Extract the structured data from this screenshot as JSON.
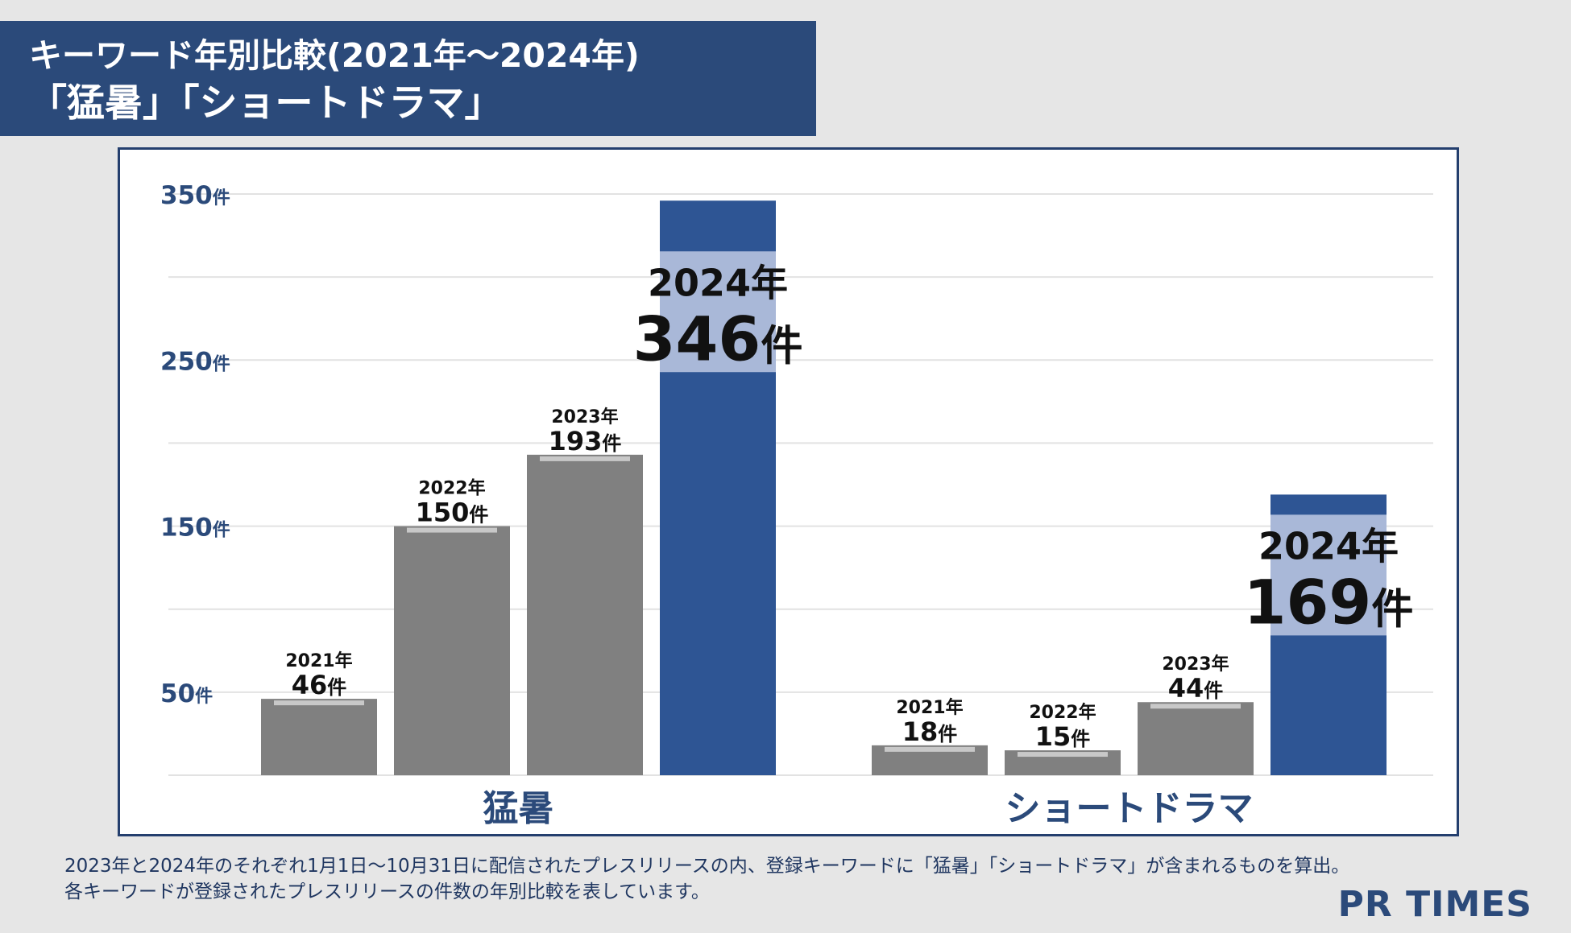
{
  "header": {
    "title_line1": "キーワード年別比較(2021年～2024年)",
    "title_line2": "「猛暑」「ショートドラマ」"
  },
  "footnote": {
    "line1": "2023年と2024年のそれぞれ1月1日～10月31日に配信されたプレスリリースの内、登録キーワードに「猛暑」「ショートドラマ」が含まれるものを算出。",
    "line2": "各キーワードが登録されたプレスリリースの件数の年別比較を表しています。"
  },
  "logo": {
    "text": "PR TIMES"
  },
  "colors": {
    "past_bar": "#808080",
    "current_bar": "#2e5594",
    "label_band": "#a9b8d8",
    "axis_text": "#2b4a7a",
    "grid": "#e2e2e2"
  },
  "chart_data": {
    "type": "bar",
    "title": "キーワード年別比較(2021年～2024年)",
    "ylim": [
      0,
      350
    ],
    "yticks": [
      {
        "value": 350,
        "label": "350件"
      },
      {
        "value": 250,
        "label": "250件"
      },
      {
        "value": 150,
        "label": "150件"
      },
      {
        "value": 50,
        "label": "50件"
      }
    ],
    "gridlines": [
      50,
      100,
      150,
      200,
      250,
      300,
      350
    ],
    "categories": [
      "猛暑",
      "ショートドラマ"
    ],
    "groups": [
      {
        "name": "猛暑",
        "bars": [
          {
            "year": "2021年",
            "value": 46,
            "label": "46件",
            "current": false
          },
          {
            "year": "2022年",
            "value": 150,
            "label": "150件",
            "current": false
          },
          {
            "year": "2023年",
            "value": 193,
            "label": "193件",
            "current": false
          },
          {
            "year": "2024年",
            "value": 346,
            "label": "346件",
            "current": true
          }
        ]
      },
      {
        "name": "ショートドラマ",
        "bars": [
          {
            "year": "2021年",
            "value": 18,
            "label": "18件",
            "current": false
          },
          {
            "year": "2022年",
            "value": 15,
            "label": "15件",
            "current": false
          },
          {
            "year": "2023年",
            "value": 44,
            "label": "44件",
            "current": false
          },
          {
            "year": "2024年",
            "value": 169,
            "label": "169件",
            "current": true
          }
        ]
      }
    ]
  }
}
